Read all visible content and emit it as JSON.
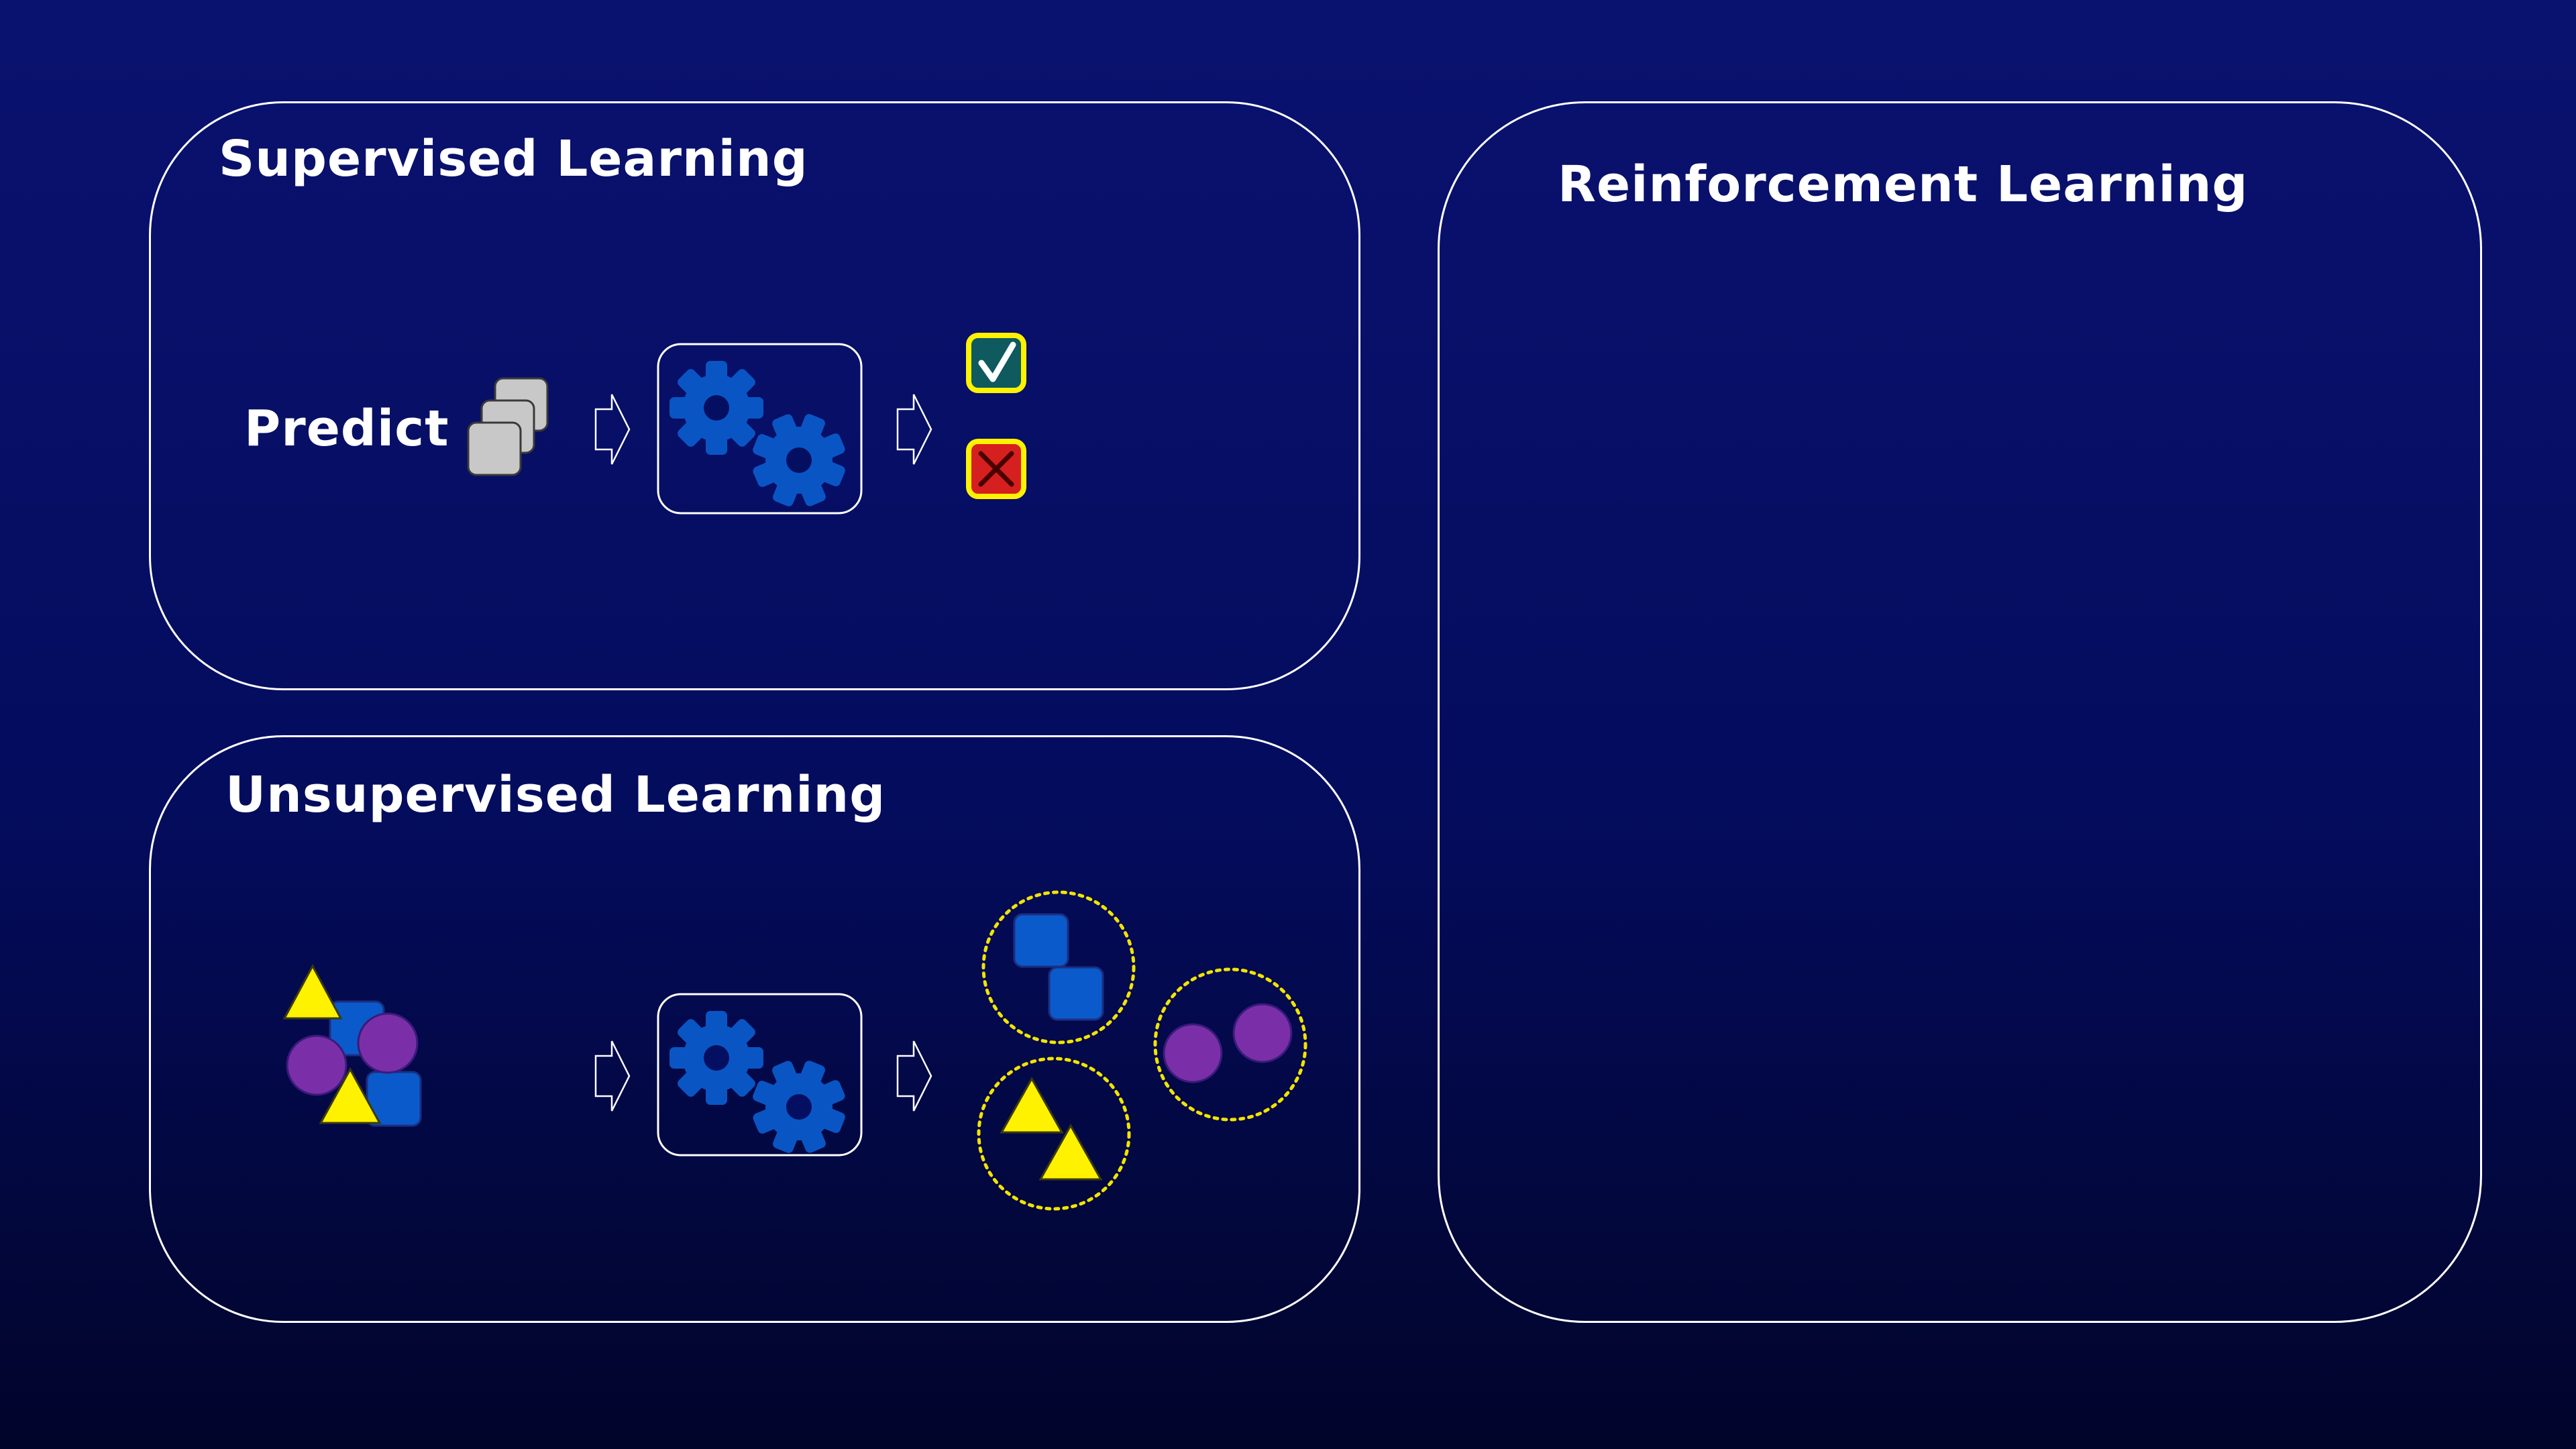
{
  "slide": {
    "supervised": {
      "title": "Supervised Learning",
      "row_label": "Predict"
    },
    "unsupervised": {
      "title": "Unsupervised Learning"
    },
    "reinforcement": {
      "title": "Reinforcement Learning"
    }
  },
  "icons": {
    "input_stack": "stacked-cards-icon",
    "flow_arrow": "hollow-right-arrow-icon",
    "model": "gears-icon",
    "correct": "checkmark-icon",
    "incorrect": "cross-icon",
    "cluster": "dotted-circle-cluster"
  },
  "colors": {
    "bg_top": "#0A1270",
    "bg_mid": "#040C5E",
    "bg_bottom": "#01042A",
    "foreground": "#FFFFFF",
    "gear_blue": "#0A55C4",
    "card_gray": "#C8C8C8",
    "triangle_yellow": "#FFF200",
    "circle_purple": "#7A2FA8",
    "square_blue": "#0A5ACB",
    "check_bg": "#0E5A5E",
    "cross_bg": "#D62020",
    "icon_border_yellow": "#FFF200",
    "cluster_ring_yellow": "#F2E400"
  }
}
